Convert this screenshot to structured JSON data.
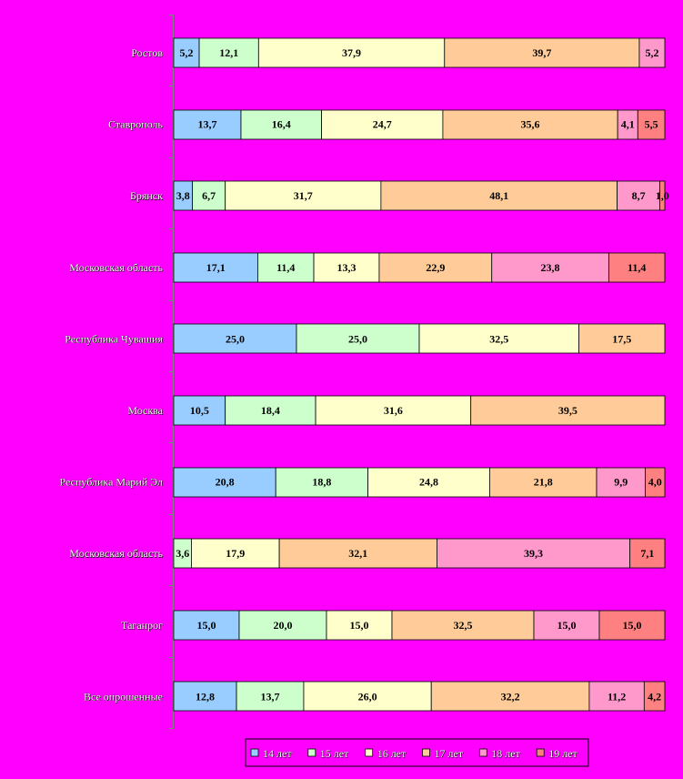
{
  "chart_data": {
    "type": "bar",
    "orientation": "horizontal",
    "stacked": "percent",
    "categories": [
      "Ростов",
      "Ставрополь",
      "Брянск",
      "Московская область",
      "Республика Чувашия",
      "Москва",
      "Республика Марий Эл",
      "Московская область",
      "Таганрог",
      "Все опрошенные"
    ],
    "series": [
      {
        "name": "14 лет",
        "color": "#99CCFF",
        "values": [
          5.2,
          13.7,
          3.8,
          17.1,
          25.0,
          10.5,
          20.8,
          0,
          15.0,
          12.8
        ],
        "labels": [
          "5,2",
          "13,7",
          "3,8",
          "17,1",
          "25,0",
          "10,5",
          "20,8",
          "",
          "15,0",
          "12,8"
        ]
      },
      {
        "name": "15 лет",
        "color": "#CCFFCC",
        "values": [
          12.1,
          16.4,
          6.7,
          11.4,
          25.0,
          18.4,
          18.8,
          3.6,
          20.0,
          13.7
        ],
        "labels": [
          "12,1",
          "16,4",
          "6,7",
          "11,4",
          "25,0",
          "18,4",
          "18,8",
          "3,6",
          "20,0",
          "13,7"
        ]
      },
      {
        "name": "16 лет",
        "color": "#FFFFCC",
        "values": [
          37.9,
          24.7,
          31.7,
          13.3,
          32.5,
          31.6,
          24.8,
          17.9,
          15.0,
          26.0
        ],
        "labels": [
          "37,9",
          "24,7",
          "31,7",
          "13,3",
          "32,5",
          "31,6",
          "24,8",
          "17,9",
          "15,0",
          "26,0"
        ]
      },
      {
        "name": "17 лет",
        "color": "#FFCC99",
        "values": [
          39.7,
          35.6,
          48.1,
          22.9,
          17.5,
          39.5,
          21.8,
          32.1,
          32.5,
          32.2
        ],
        "labels": [
          "39,7",
          "35,6",
          "48,1",
          "22,9",
          "17,5",
          "39,5",
          "21,8",
          "32,1",
          "32,5",
          "32,2"
        ]
      },
      {
        "name": "18 лет",
        "color": "#FF99CC",
        "values": [
          5.2,
          4.1,
          8.7,
          23.8,
          0,
          0,
          9.9,
          39.3,
          15.0,
          11.2
        ],
        "labels": [
          "5,2",
          "4,1",
          "8,7",
          "23,8",
          "",
          "",
          "9,9",
          "39,3",
          "15,0",
          "11,2"
        ]
      },
      {
        "name": "19 лет",
        "color": "#FF8080",
        "values": [
          0,
          5.5,
          1.0,
          11.4,
          0,
          0,
          4.0,
          7.1,
          15.0,
          4.2
        ],
        "labels": [
          "",
          "5,5",
          "1,0",
          "11,4",
          "",
          "",
          "4,0",
          "7,1",
          "15,0",
          "4,2"
        ]
      }
    ],
    "xlim": [
      0,
      100
    ],
    "legend_position": "bottom",
    "grid": false
  }
}
